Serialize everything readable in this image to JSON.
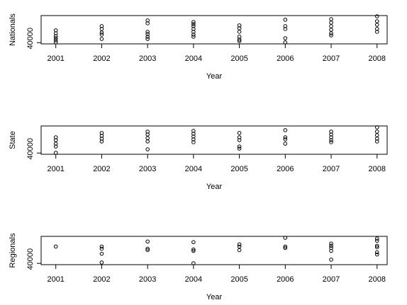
{
  "chart_data": [
    {
      "type": "scatter",
      "xlabel": "Year",
      "ylabel": "Nationals",
      "xlim": [
        2000.68,
        2008.22
      ],
      "ylim": [
        39000,
        62000
      ],
      "xticks": [
        2001,
        2002,
        2003,
        2004,
        2005,
        2006,
        2007,
        2008
      ],
      "yticks": [
        40000
      ],
      "color": "#000000",
      "x": [
        2001,
        2001,
        2001,
        2001,
        2001,
        2001,
        2002,
        2002,
        2002,
        2002,
        2002,
        2003,
        2003,
        2003,
        2003,
        2003,
        2003,
        2004,
        2004,
        2004,
        2004,
        2004,
        2004,
        2004,
        2005,
        2005,
        2005,
        2005,
        2005,
        2005,
        2006,
        2006,
        2006,
        2006,
        2006,
        2007,
        2007,
        2007,
        2007,
        2007,
        2007,
        2008,
        2008,
        2008,
        2008,
        2008
      ],
      "values": [
        50000,
        47600,
        45300,
        43600,
        41900,
        40200,
        53400,
        51100,
        48200,
        46500,
        43000,
        58000,
        55700,
        48800,
        47000,
        44800,
        43000,
        56800,
        55100,
        53400,
        51100,
        48800,
        46500,
        44800,
        54000,
        51700,
        48800,
        44800,
        42500,
        41300,
        58600,
        53400,
        51100,
        43600,
        40200,
        59100,
        56300,
        53400,
        50500,
        47600,
        45900,
        61400,
        57400,
        54500,
        51100,
        48800
      ]
    },
    {
      "type": "scatter",
      "xlabel": "Year",
      "ylabel": "State",
      "xlim": [
        2000.68,
        2008.22
      ],
      "ylim": [
        39000,
        62000
      ],
      "xticks": [
        2001,
        2002,
        2003,
        2004,
        2005,
        2006,
        2007,
        2008
      ],
      "yticks": [
        40000
      ],
      "color": "#000000",
      "x": [
        2001,
        2001,
        2001,
        2001,
        2001,
        2002,
        2002,
        2002,
        2002,
        2003,
        2003,
        2003,
        2003,
        2003,
        2004,
        2004,
        2004,
        2004,
        2004,
        2005,
        2005,
        2005,
        2005,
        2005,
        2006,
        2006,
        2006,
        2006,
        2007,
        2007,
        2007,
        2007,
        2007,
        2008,
        2008,
        2008,
        2008,
        2008
      ],
      "values": [
        52800,
        50500,
        47600,
        45300,
        40200,
        56300,
        54000,
        51700,
        49400,
        57400,
        55100,
        52200,
        49400,
        43000,
        58000,
        55700,
        53400,
        51100,
        48800,
        56300,
        52800,
        50500,
        45300,
        43600,
        58600,
        52800,
        51100,
        47600,
        57400,
        55100,
        52800,
        50500,
        48800,
        60900,
        57400,
        54500,
        51700,
        49400
      ]
    },
    {
      "type": "scatter",
      "xlabel": "Year",
      "ylabel": "Regionals",
      "xlim": [
        2000.68,
        2008.22
      ],
      "ylim": [
        39000,
        61000
      ],
      "xticks": [
        2001,
        2002,
        2003,
        2004,
        2005,
        2006,
        2007,
        2008
      ],
      "yticks": [
        40000
      ],
      "color": "#000000",
      "x": [
        2001,
        2002,
        2002,
        2002,
        2002,
        2003,
        2003,
        2003,
        2004,
        2004,
        2004,
        2004,
        2005,
        2005,
        2005,
        2006,
        2006,
        2006,
        2007,
        2007,
        2007,
        2007,
        2007,
        2008,
        2008,
        2008,
        2008,
        2008,
        2008
      ],
      "values": [
        53100,
        53100,
        51400,
        47500,
        40700,
        57000,
        51400,
        50300,
        56500,
        50800,
        49700,
        40100,
        54800,
        53100,
        50300,
        59900,
        53100,
        52000,
        55400,
        53700,
        52000,
        49700,
        42900,
        59300,
        57600,
        53700,
        52500,
        48600,
        46900
      ]
    }
  ]
}
